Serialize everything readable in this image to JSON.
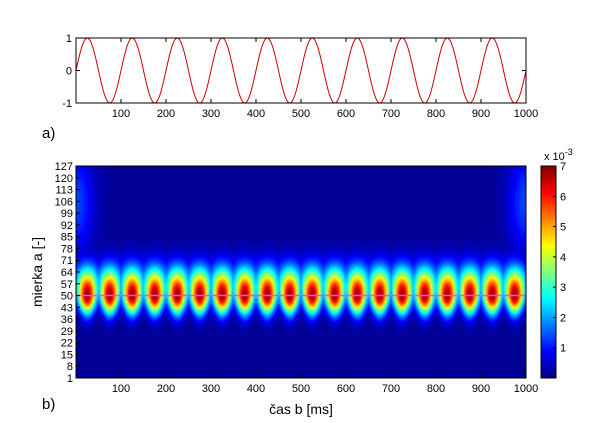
{
  "chart_data": [
    {
      "type": "line",
      "panel_label": "a)",
      "xlim": [
        0,
        1000
      ],
      "ylim": [
        -1,
        1
      ],
      "xticks": [
        100,
        200,
        300,
        400,
        500,
        600,
        700,
        800,
        900,
        1000
      ],
      "yticks": [
        -1,
        0,
        1
      ],
      "xlabel": "",
      "ylabel": "",
      "series": [
        {
          "function": "sine",
          "period": 100,
          "amplitude": 1,
          "phase_start": 0,
          "samples": 801,
          "color": "#cc0000"
        }
      ],
      "grid": false
    },
    {
      "type": "heatmap",
      "panel_label": "b)",
      "xlabel": "čas b [ms]",
      "ylabel": "mierka a [-]",
      "xlim": [
        0,
        1000
      ],
      "xticks": [
        100,
        200,
        300,
        400,
        500,
        600,
        700,
        800,
        900,
        1000
      ],
      "yticks": [
        1,
        8,
        15,
        22,
        29,
        36,
        43,
        50,
        57,
        64,
        71,
        78,
        85,
        92,
        99,
        106,
        113,
        120,
        127
      ],
      "ylim": [
        1,
        127
      ],
      "colormap": "jet",
      "colorbar": {
        "range": [
          0,
          7
        ],
        "ticks": [
          1,
          2,
          3,
          4,
          5,
          6,
          7
        ],
        "multiplier_base": "x 10",
        "multiplier_exp": "-3"
      },
      "blobs": {
        "centers_x": [
          25,
          75,
          125,
          175,
          225,
          275,
          325,
          375,
          425,
          475,
          525,
          575,
          625,
          675,
          725,
          775,
          825,
          875,
          925,
          975
        ],
        "center_y": 50,
        "peak_value": 7
      },
      "reference_line": {
        "y": 50,
        "color": "#ff44ff"
      }
    }
  ]
}
